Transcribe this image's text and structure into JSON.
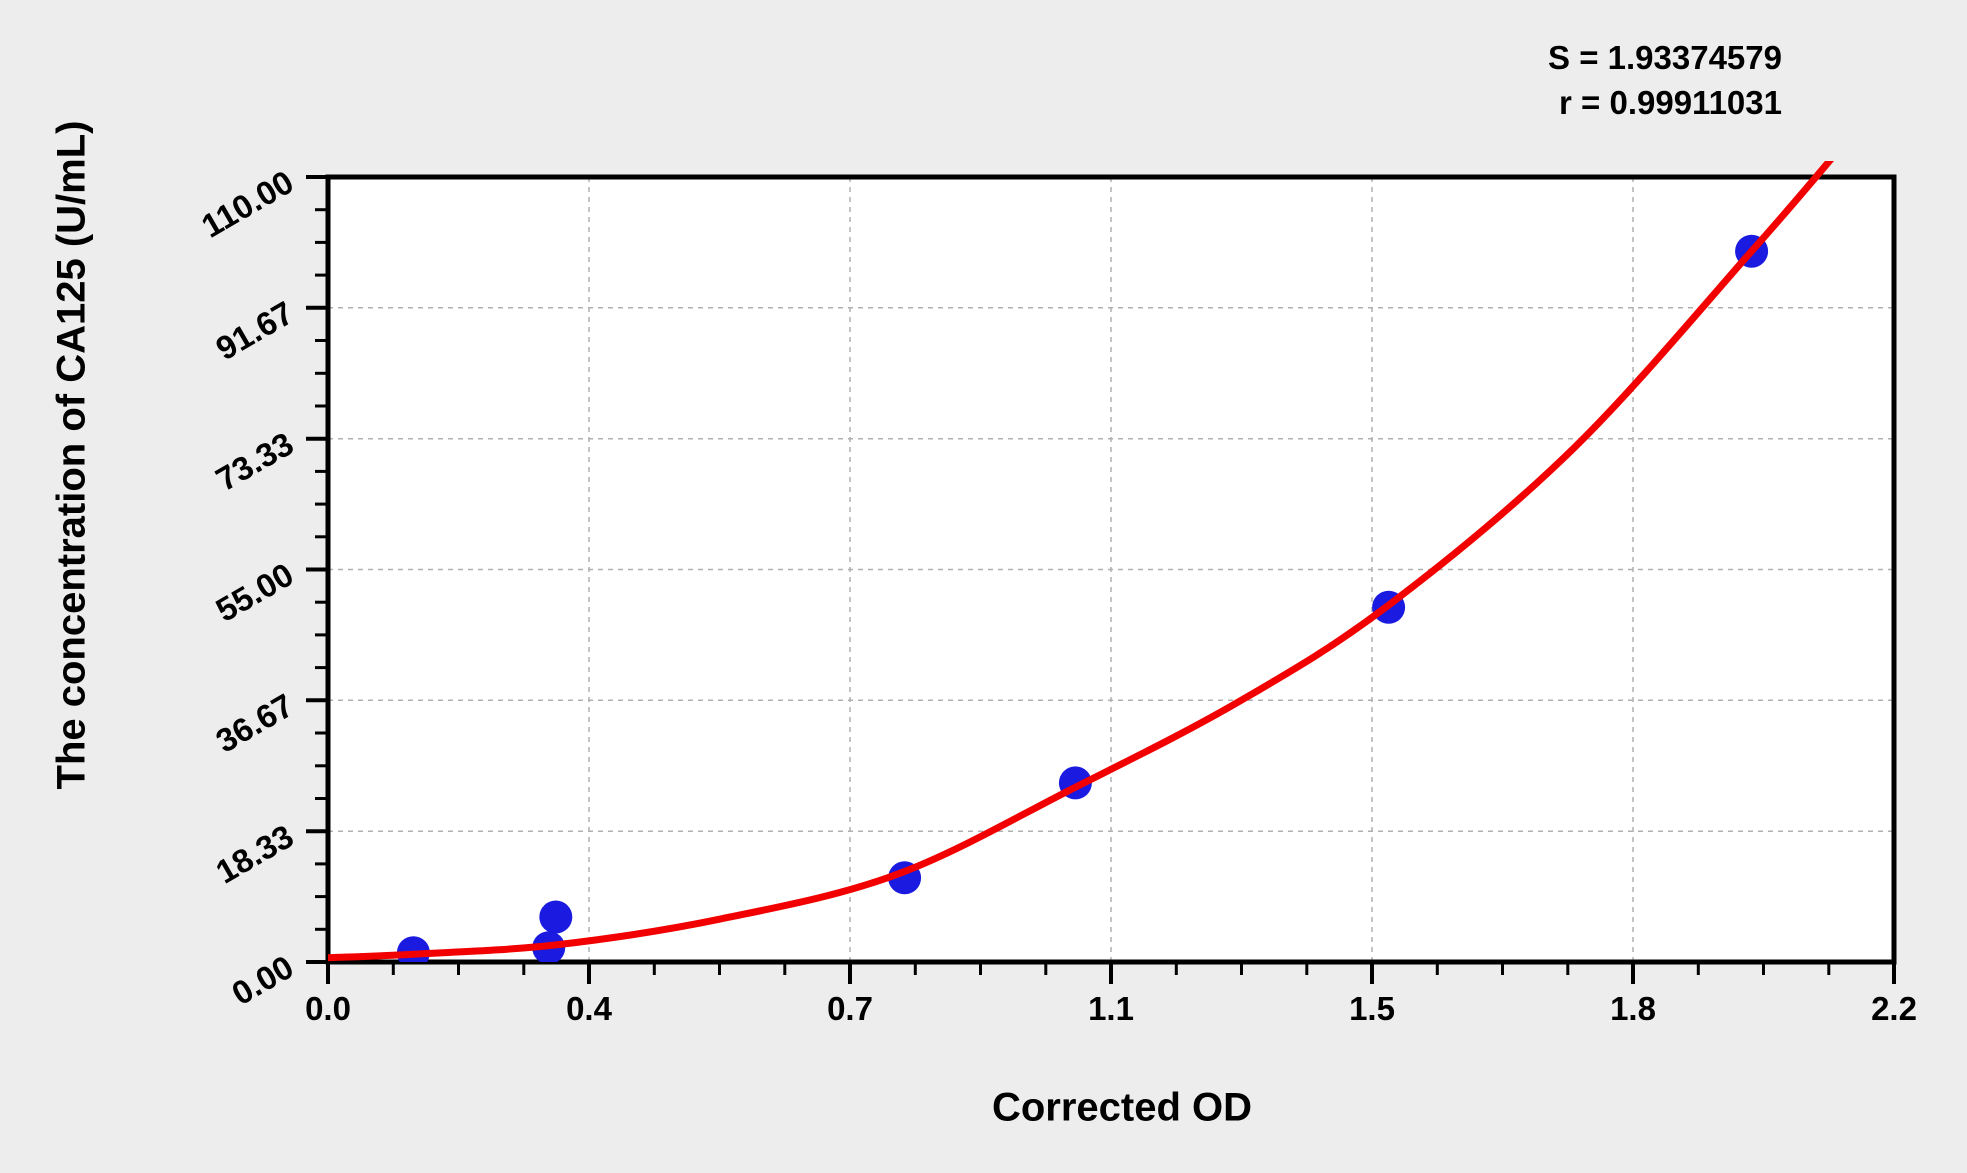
{
  "stats": {
    "s_line": "S = 1.93374579",
    "r_line": "r = 0.99911031"
  },
  "chart_data": {
    "type": "scatter",
    "title": "",
    "xlabel": "Corrected OD",
    "ylabel": "The concentration of CA125 (U/mL)",
    "xlim": [
      0,
      2.2
    ],
    "ylim": [
      0,
      110
    ],
    "x_tick_labels": [
      "0.0",
      "0.4",
      "0.7",
      "1.1",
      "1.5",
      "1.8",
      "2.2"
    ],
    "y_tick_labels": [
      "0.00",
      "18.33",
      "36.67",
      "55.00",
      "73.33",
      "91.67",
      "110.00"
    ],
    "minor_ticks_per_interval": 3,
    "grid": "dashed-major",
    "legend": "none",
    "points": [
      {
        "x": 0.12,
        "y": 1.3
      },
      {
        "x": 0.31,
        "y": 2.0
      },
      {
        "x": 0.32,
        "y": 6.3
      },
      {
        "x": 0.81,
        "y": 11.8
      },
      {
        "x": 1.05,
        "y": 25.1
      },
      {
        "x": 1.49,
        "y": 49.7
      },
      {
        "x": 2.0,
        "y": 99.6
      }
    ],
    "fit": {
      "S": 1.93374579,
      "r": 0.99911031,
      "curve_anchors": [
        [
          0.0,
          0.6
        ],
        [
          0.12,
          1.1
        ],
        [
          0.32,
          2.4
        ],
        [
          0.55,
          6.0
        ],
        [
          0.8,
          12.3
        ],
        [
          1.05,
          24.5
        ],
        [
          1.28,
          36.5
        ],
        [
          1.49,
          50.0
        ],
        [
          1.75,
          72.0
        ],
        [
          2.0,
          99.6
        ],
        [
          2.12,
          113.5
        ]
      ]
    },
    "colors": {
      "curve": "#f20000",
      "points": "#1a1ae0",
      "grid": "#b0b0b0",
      "axis": "#000000",
      "plot_bg": "#ffffff",
      "page_bg": "#ededed",
      "text": "#000000"
    }
  }
}
